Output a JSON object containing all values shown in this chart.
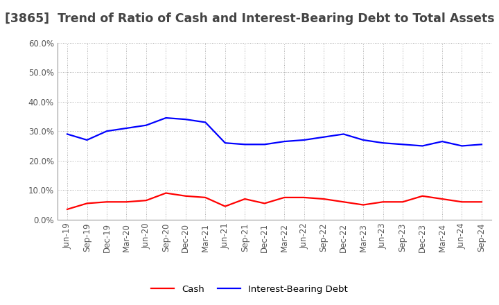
{
  "title": "[3865]  Trend of Ratio of Cash and Interest-Bearing Debt to Total Assets",
  "labels": [
    "Jun-19",
    "Sep-19",
    "Dec-19",
    "Mar-20",
    "Jun-20",
    "Sep-20",
    "Dec-20",
    "Mar-21",
    "Jun-21",
    "Sep-21",
    "Dec-21",
    "Mar-22",
    "Jun-22",
    "Sep-22",
    "Dec-22",
    "Mar-23",
    "Jun-23",
    "Sep-23",
    "Dec-23",
    "Mar-24",
    "Jun-24",
    "Sep-24"
  ],
  "cash": [
    3.5,
    5.5,
    6.0,
    6.0,
    6.5,
    9.0,
    8.0,
    7.5,
    4.5,
    7.0,
    5.5,
    7.5,
    7.5,
    7.0,
    6.0,
    5.0,
    6.0,
    6.0,
    8.0,
    7.0,
    6.0,
    6.0
  ],
  "ibd": [
    29.0,
    27.0,
    30.0,
    31.0,
    32.0,
    34.5,
    34.0,
    33.0,
    26.0,
    25.5,
    25.5,
    26.5,
    27.0,
    28.0,
    29.0,
    27.0,
    26.0,
    25.5,
    25.0,
    26.5,
    25.0,
    25.5
  ],
  "cash_color": "#FF0000",
  "ibd_color": "#0000FF",
  "background_color": "#FFFFFF",
  "grid_color": "#999999",
  "title_color": "#444444",
  "ylim": [
    0.0,
    60.0
  ],
  "yticks": [
    0.0,
    10.0,
    20.0,
    30.0,
    40.0,
    50.0,
    60.0
  ],
  "legend_cash": "Cash",
  "legend_ibd": "Interest-Bearing Debt",
  "title_fontsize": 12.5,
  "axis_fontsize": 8.5,
  "legend_fontsize": 9.5,
  "line_width": 1.6
}
